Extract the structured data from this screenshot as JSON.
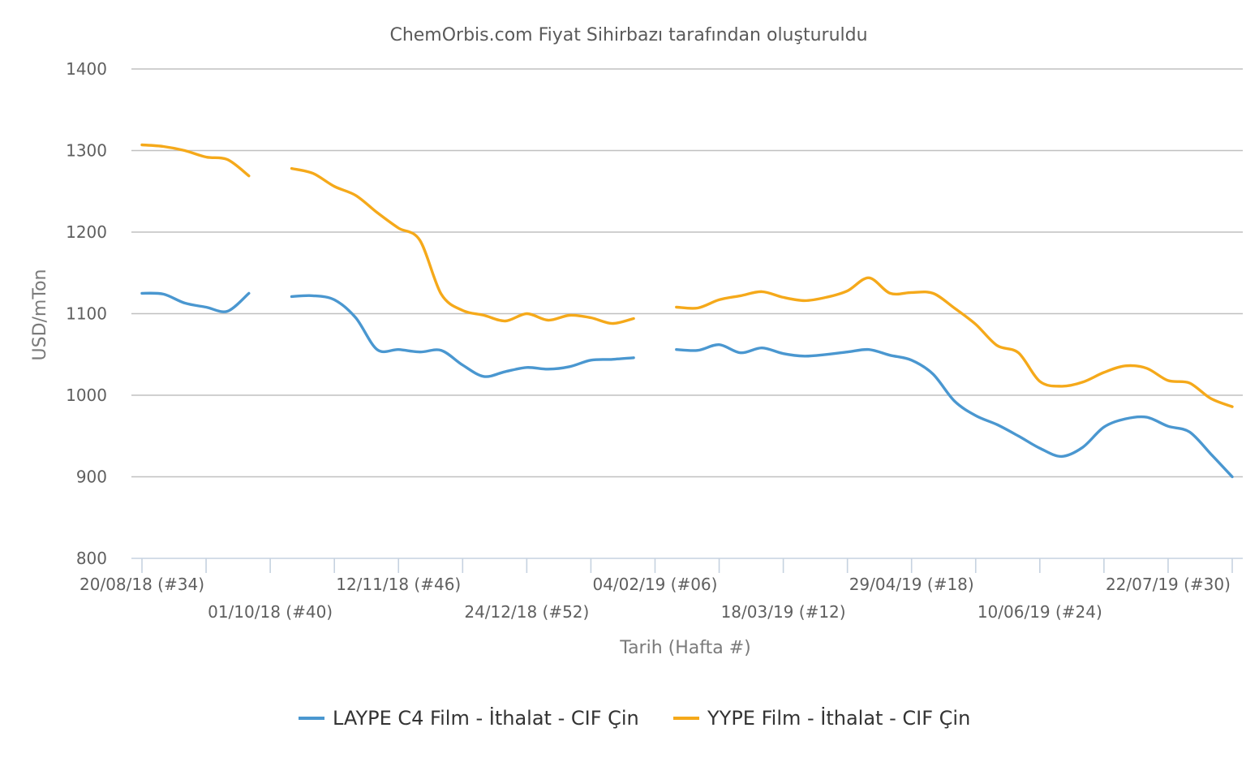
{
  "chart_data": {
    "type": "line",
    "subtitle": "ChemOrbis.com Fiyat Sihirbazı tarafından oluşturuldu",
    "ylabel": "USD/mTon",
    "xlabel": "Tarih (Hafta #)",
    "ylim": [
      800,
      1400
    ],
    "yticks": [
      800,
      900,
      1000,
      1100,
      1200,
      1300,
      1400
    ],
    "xlim": [
      34,
      85
    ],
    "x_tick_weeks": [
      34,
      37,
      40,
      43,
      46,
      49,
      52,
      55,
      58,
      61,
      64,
      67,
      70,
      73,
      76,
      79,
      82,
      85
    ],
    "x_tick_labels": [
      {
        "week": 34,
        "label": "20/08/18 (#34)",
        "row": 1
      },
      {
        "week": 40,
        "label": "01/10/18 (#40)",
        "row": 2
      },
      {
        "week": 46,
        "label": "12/11/18 (#46)",
        "row": 1
      },
      {
        "week": 52,
        "label": "24/12/18 (#52)",
        "row": 2
      },
      {
        "week": 58,
        "label": "04/02/19 (#06)",
        "row": 1
      },
      {
        "week": 64,
        "label": "18/03/19 (#12)",
        "row": 2
      },
      {
        "week": 70,
        "label": "29/04/19 (#18)",
        "row": 1
      },
      {
        "week": 76,
        "label": "10/06/19 (#24)",
        "row": 2
      },
      {
        "week": 82,
        "label": "22/07/19 (#30)",
        "row": 1
      }
    ],
    "grid": true,
    "legend_position": "bottom-center",
    "series": [
      {
        "name": "LAYPE C4 Film - İthalat - CIF Çin",
        "color": "#4a97d0",
        "segments": [
          [
            [
              34,
              1125
            ],
            [
              35,
              1124
            ],
            [
              36,
              1113
            ],
            [
              37,
              1108
            ],
            [
              38,
              1103
            ],
            [
              39,
              1125
            ]
          ],
          [
            [
              41,
              1121
            ],
            [
              42,
              1122
            ],
            [
              43,
              1117
            ],
            [
              44,
              1095
            ],
            [
              45,
              1056
            ],
            [
              46,
              1056
            ],
            [
              47,
              1053
            ],
            [
              48,
              1055
            ],
            [
              49,
              1037
            ],
            [
              50,
              1023
            ],
            [
              51,
              1029
            ],
            [
              52,
              1034
            ],
            [
              53,
              1032
            ],
            [
              54,
              1035
            ],
            [
              55,
              1043
            ],
            [
              56,
              1044
            ],
            [
              57,
              1046
            ]
          ],
          [
            [
              59,
              1056
            ],
            [
              60,
              1055
            ],
            [
              61,
              1062
            ],
            [
              62,
              1052
            ],
            [
              63,
              1058
            ],
            [
              64,
              1051
            ],
            [
              65,
              1048
            ],
            [
              66,
              1050
            ],
            [
              67,
              1053
            ],
            [
              68,
              1056
            ],
            [
              69,
              1049
            ],
            [
              70,
              1043
            ],
            [
              71,
              1026
            ],
            [
              72,
              993
            ],
            [
              73,
              975
            ],
            [
              74,
              964
            ],
            [
              75,
              950
            ],
            [
              76,
              935
            ],
            [
              77,
              925
            ],
            [
              78,
              936
            ],
            [
              79,
              961
            ],
            [
              80,
              971
            ],
            [
              81,
              973
            ],
            [
              82,
              962
            ],
            [
              83,
              955
            ],
            [
              84,
              928
            ],
            [
              85,
              900
            ]
          ]
        ]
      },
      {
        "name": "YYPE Film - İthalat - CIF Çin",
        "color": "#f5a91a",
        "segments": [
          [
            [
              34,
              1307
            ],
            [
              35,
              1305
            ],
            [
              36,
              1300
            ],
            [
              37,
              1292
            ],
            [
              38,
              1289
            ],
            [
              39,
              1269
            ]
          ],
          [
            [
              41,
              1278
            ],
            [
              42,
              1272
            ],
            [
              43,
              1256
            ],
            [
              44,
              1245
            ],
            [
              45,
              1224
            ],
            [
              46,
              1205
            ],
            [
              47,
              1190
            ],
            [
              48,
              1124
            ],
            [
              49,
              1104
            ],
            [
              50,
              1098
            ],
            [
              51,
              1091
            ],
            [
              52,
              1100
            ],
            [
              53,
              1092
            ],
            [
              54,
              1098
            ],
            [
              55,
              1095
            ],
            [
              56,
              1088
            ],
            [
              57,
              1094
            ]
          ],
          [
            [
              59,
              1108
            ],
            [
              60,
              1107
            ],
            [
              61,
              1117
            ],
            [
              62,
              1122
            ],
            [
              63,
              1127
            ],
            [
              64,
              1120
            ],
            [
              65,
              1116
            ],
            [
              66,
              1120
            ],
            [
              67,
              1128
            ],
            [
              68,
              1144
            ],
            [
              69,
              1125
            ],
            [
              70,
              1126
            ],
            [
              71,
              1125
            ],
            [
              72,
              1107
            ],
            [
              73,
              1087
            ],
            [
              74,
              1061
            ],
            [
              75,
              1052
            ],
            [
              76,
              1017
            ],
            [
              77,
              1011
            ],
            [
              78,
              1016
            ],
            [
              79,
              1028
            ],
            [
              80,
              1036
            ],
            [
              81,
              1033
            ],
            [
              82,
              1018
            ],
            [
              83,
              1015
            ],
            [
              84,
              996
            ],
            [
              85,
              986
            ]
          ]
        ]
      }
    ]
  }
}
